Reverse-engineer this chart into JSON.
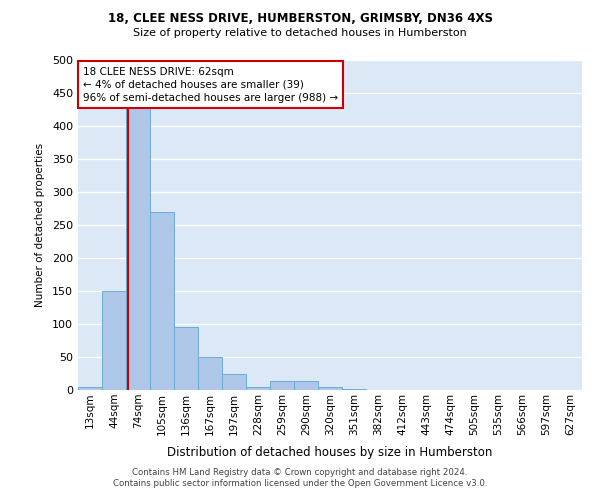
{
  "title1": "18, CLEE NESS DRIVE, HUMBERSTON, GRIMSBY, DN36 4XS",
  "title2": "Size of property relative to detached houses in Humberston",
  "xlabel": "Distribution of detached houses by size in Humberston",
  "ylabel": "Number of detached properties",
  "footnote1": "Contains HM Land Registry data © Crown copyright and database right 2024.",
  "footnote2": "Contains public sector information licensed under the Open Government Licence v3.0.",
  "categories": [
    "13sqm",
    "44sqm",
    "74sqm",
    "105sqm",
    "136sqm",
    "167sqm",
    "197sqm",
    "228sqm",
    "259sqm",
    "290sqm",
    "320sqm",
    "351sqm",
    "382sqm",
    "412sqm",
    "443sqm",
    "474sqm",
    "505sqm",
    "535sqm",
    "566sqm",
    "597sqm",
    "627sqm"
  ],
  "values": [
    5,
    150,
    430,
    270,
    95,
    50,
    25,
    5,
    14,
    14,
    5,
    2,
    0,
    0,
    0,
    0,
    0,
    0,
    0,
    0,
    0
  ],
  "bar_color": "#aec6e8",
  "bar_edge_color": "#6aacd4",
  "bar_linewidth": 0.7,
  "background_color": "#dce8f5",
  "grid_color": "#ffffff",
  "vline_color": "#cc0000",
  "annotation_text": "18 CLEE NESS DRIVE: 62sqm\n← 4% of detached houses are smaller (39)\n96% of semi-detached houses are larger (988) →",
  "annotation_box_color": "#ffffff",
  "annotation_box_edge_color": "#cc0000",
  "ylim": [
    0,
    500
  ],
  "yticks": [
    0,
    50,
    100,
    150,
    200,
    250,
    300,
    350,
    400,
    450,
    500
  ]
}
